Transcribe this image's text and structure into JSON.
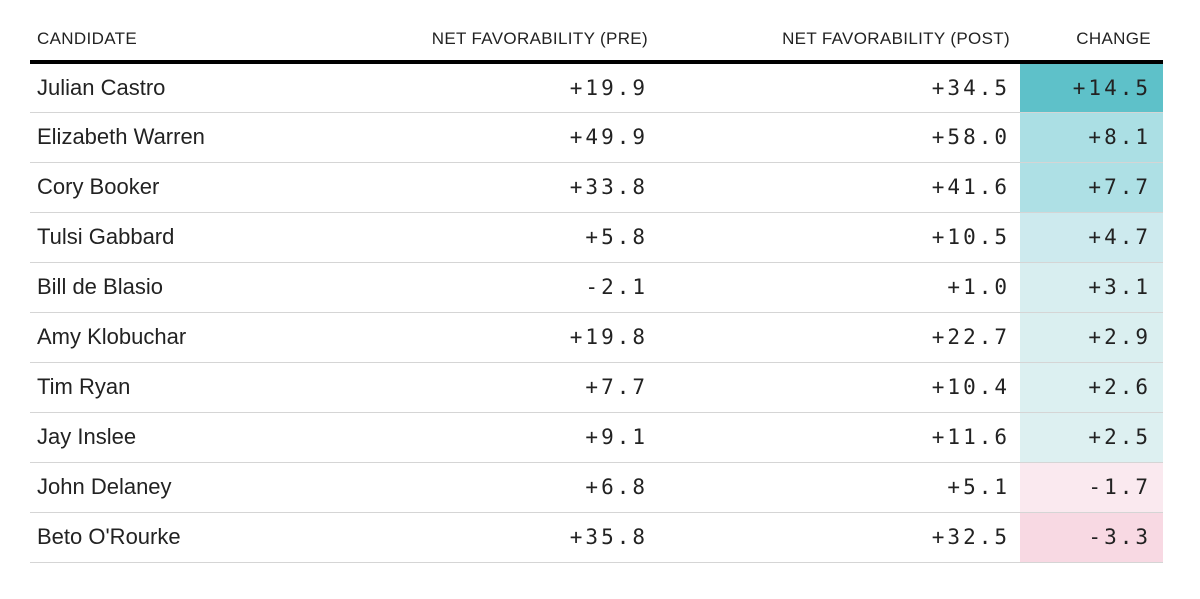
{
  "header": {
    "candidate": "CANDIDATE",
    "pre": "NET FAVORABILITY (PRE)",
    "post": "NET FAVORABILITY (POST)",
    "change": "CHANGE"
  },
  "rows": [
    {
      "candidate": "Julian Castro",
      "pre": "+19.9",
      "post": "+34.5",
      "change": "+14.5",
      "change_bg": "#5ec1c9"
    },
    {
      "candidate": "Elizabeth Warren",
      "pre": "+49.9",
      "post": "+58.0",
      "change": "+8.1",
      "change_bg": "#abdfe4"
    },
    {
      "candidate": "Cory Booker",
      "pre": "+33.8",
      "post": "+41.6",
      "change": "+7.7",
      "change_bg": "#aee0e5"
    },
    {
      "candidate": "Tulsi Gabbard",
      "pre": "+5.8",
      "post": "+10.5",
      "change": "+4.7",
      "change_bg": "#cdeaee"
    },
    {
      "candidate": "Bill de Blasio",
      "pre": "-2.1",
      "post": "+1.0",
      "change": "+3.1",
      "change_bg": "#d8eef0"
    },
    {
      "candidate": "Amy Klobuchar",
      "pre": "+19.8",
      "post": "+22.7",
      "change": "+2.9",
      "change_bg": "#daeff0"
    },
    {
      "candidate": "Tim Ryan",
      "pre": "+7.7",
      "post": "+10.4",
      "change": "+2.6",
      "change_bg": "#dcf0f1"
    },
    {
      "candidate": "Jay Inslee",
      "pre": "+9.1",
      "post": "+11.6",
      "change": "+2.5",
      "change_bg": "#ddf0f1"
    },
    {
      "candidate": "John Delaney",
      "pre": "+6.8",
      "post": "+5.1",
      "change": "-1.7",
      "change_bg": "#fae9ef"
    },
    {
      "candidate": "Beto O'Rourke",
      "pre": "+35.8",
      "post": "+32.5",
      "change": "-3.3",
      "change_bg": "#f8d9e3"
    }
  ],
  "colors": {
    "text": "#222222",
    "header_rule": "#000000",
    "row_divider": "#d5d5d5",
    "change_positive_strong": "#5ec1c9",
    "change_positive_light": "#ddf0f1",
    "change_negative_light": "#fae9ef",
    "change_negative_strong": "#f8d9e3"
  },
  "chart_data": {
    "type": "table",
    "columns": [
      "CANDIDATE",
      "NET FAVORABILITY (PRE)",
      "NET FAVORABILITY (POST)",
      "CHANGE"
    ],
    "rows": [
      [
        "Julian Castro",
        19.9,
        34.5,
        14.5
      ],
      [
        "Elizabeth Warren",
        49.9,
        58.0,
        8.1
      ],
      [
        "Cory Booker",
        33.8,
        41.6,
        7.7
      ],
      [
        "Tulsi Gabbard",
        5.8,
        10.5,
        4.7
      ],
      [
        "Bill de Blasio",
        -2.1,
        1.0,
        3.1
      ],
      [
        "Amy Klobuchar",
        19.8,
        22.7,
        2.9
      ],
      [
        "Tim Ryan",
        7.7,
        10.4,
        2.6
      ],
      [
        "Jay Inslee",
        9.1,
        11.6,
        2.5
      ],
      [
        "John Delaney",
        6.8,
        5.1,
        -1.7
      ],
      [
        "Beto O'Rourke",
        35.8,
        32.5,
        -3.3
      ]
    ],
    "notes": "Change column cells are shaded teal for positive change and pink for negative change, intensity scaled to magnitude"
  }
}
